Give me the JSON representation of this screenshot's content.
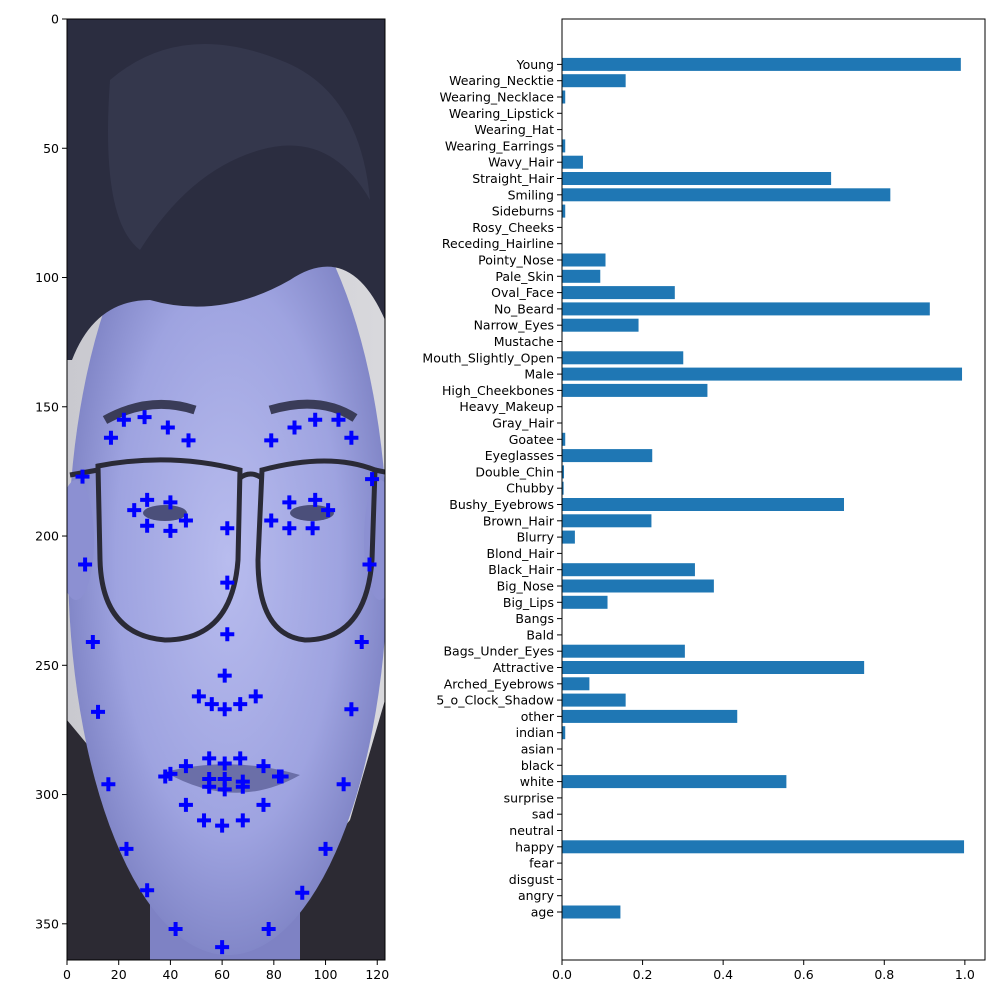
{
  "colors": {
    "bar": "#1f77b4",
    "landmark": "#0000ff",
    "axis": "#000000"
  },
  "chart_data": [
    {
      "type": "scatter",
      "content": "face-image-with-landmarks",
      "xlim": [
        0,
        123
      ],
      "ylim": [
        364,
        0
      ],
      "xticks": [
        0,
        20,
        40,
        60,
        80,
        100,
        120
      ],
      "yticks": [
        0,
        50,
        100,
        150,
        200,
        250,
        300,
        350
      ],
      "marker": "plus",
      "points": [
        [
          6,
          177
        ],
        [
          7,
          211
        ],
        [
          10,
          241
        ],
        [
          12,
          268
        ],
        [
          16,
          296
        ],
        [
          23,
          321
        ],
        [
          31,
          337
        ],
        [
          42,
          352
        ],
        [
          60,
          359
        ],
        [
          78,
          352
        ],
        [
          91,
          338
        ],
        [
          100,
          321
        ],
        [
          107,
          296
        ],
        [
          110,
          267
        ],
        [
          114,
          241
        ],
        [
          117,
          211
        ],
        [
          118,
          178
        ],
        [
          17,
          162
        ],
        [
          22,
          155
        ],
        [
          30,
          154
        ],
        [
          39,
          158
        ],
        [
          47,
          163
        ],
        [
          79,
          163
        ],
        [
          88,
          158
        ],
        [
          96,
          155
        ],
        [
          105,
          155
        ],
        [
          110,
          162
        ],
        [
          62,
          197
        ],
        [
          62,
          218
        ],
        [
          62,
          238
        ],
        [
          61,
          254
        ],
        [
          51,
          262
        ],
        [
          56,
          265
        ],
        [
          61,
          267
        ],
        [
          67,
          265
        ],
        [
          73,
          262
        ],
        [
          26,
          190
        ],
        [
          31,
          186
        ],
        [
          40,
          187
        ],
        [
          46,
          194
        ],
        [
          40,
          198
        ],
        [
          31,
          196
        ],
        [
          79,
          194
        ],
        [
          86,
          187
        ],
        [
          96,
          186
        ],
        [
          101,
          190
        ],
        [
          95,
          197
        ],
        [
          86,
          197
        ],
        [
          38,
          293
        ],
        [
          46,
          289
        ],
        [
          55,
          286
        ],
        [
          61,
          288
        ],
        [
          67,
          286
        ],
        [
          76,
          289
        ],
        [
          83,
          293
        ],
        [
          76,
          304
        ],
        [
          68,
          310
        ],
        [
          60,
          312
        ],
        [
          53,
          310
        ],
        [
          46,
          304
        ],
        [
          40,
          292
        ],
        [
          55,
          294
        ],
        [
          61,
          294
        ],
        [
          68,
          295
        ],
        [
          82,
          293
        ],
        [
          68,
          297
        ],
        [
          61,
          298
        ],
        [
          55,
          297
        ]
      ]
    },
    {
      "type": "bar",
      "orientation": "horizontal",
      "xlim": [
        0,
        1.05
      ],
      "xticks": [
        "0.0",
        "0.2",
        "0.4",
        "0.6",
        "0.8",
        "1.0"
      ],
      "categories": [
        "age",
        "angry",
        "disgust",
        "fear",
        "happy",
        "neutral",
        "sad",
        "surprise",
        "white",
        "black",
        "asian",
        "indian",
        "other",
        "5_o_Clock_Shadow",
        "Arched_Eyebrows",
        "Attractive",
        "Bags_Under_Eyes",
        "Bald",
        "Bangs",
        "Big_Lips",
        "Big_Nose",
        "Black_Hair",
        "Blond_Hair",
        "Blurry",
        "Brown_Hair",
        "Bushy_Eyebrows",
        "Chubby",
        "Double_Chin",
        "Eyeglasses",
        "Goatee",
        "Gray_Hair",
        "Heavy_Makeup",
        "High_Cheekbones",
        "Male",
        "Mouth_Slightly_Open",
        "Mustache",
        "Narrow_Eyes",
        "No_Beard",
        "Oval_Face",
        "Pale_Skin",
        "Pointy_Nose",
        "Receding_Hairline",
        "Rosy_Cheeks",
        "Sideburns",
        "Smiling",
        "Straight_Hair",
        "Wavy_Hair",
        "Wearing_Earrings",
        "Wearing_Hat",
        "Wearing_Lipstick",
        "Wearing_Necklace",
        "Wearing_Necktie",
        "Young"
      ],
      "values": [
        0.145,
        0.0,
        0.0,
        0.0,
        0.998,
        0.0,
        0.0,
        0.0,
        0.557,
        0.0,
        0.0,
        0.008,
        0.435,
        0.158,
        0.068,
        0.75,
        0.305,
        0.0,
        0.0,
        0.113,
        0.377,
        0.33,
        0.0,
        0.032,
        0.222,
        0.7,
        0.004,
        0.005,
        0.224,
        0.008,
        0.0,
        0.0,
        0.361,
        0.993,
        0.301,
        0.0,
        0.19,
        0.913,
        0.28,
        0.095,
        0.108,
        0.0,
        0.0,
        0.008,
        0.815,
        0.668,
        0.052,
        0.008,
        0.0,
        0.0,
        0.008,
        0.158,
        0.99
      ]
    }
  ]
}
